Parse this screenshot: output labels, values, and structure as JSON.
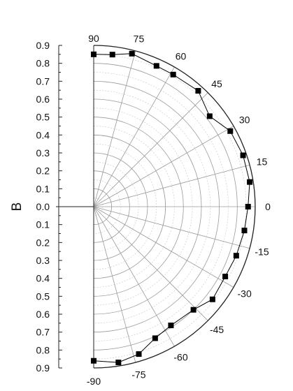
{
  "chart_data": {
    "type": "polar-scatter-line",
    "title": "",
    "ylabel": "B",
    "radial_axis": {
      "range": [
        0,
        0.9
      ],
      "tick_labels": [
        "0.9",
        "0.8",
        "0.7",
        "0.6",
        "0.5",
        "0.4",
        "0.3",
        "0.2",
        "0.1",
        "0.0"
      ],
      "minor_gridlines": true
    },
    "angular_axis": {
      "range": [
        -90,
        90
      ],
      "unit": "degrees",
      "tick_labels": [
        "90",
        "75",
        "60",
        "45",
        "30",
        "15",
        "0",
        "-15",
        "-30",
        "-45",
        "-60",
        "-75",
        "-90"
      ]
    },
    "grid": true,
    "series": [
      {
        "marker": "square",
        "line": true,
        "points": [
          {
            "angle": 90,
            "r": 0.85
          },
          {
            "angle": 83,
            "r": 0.855
          },
          {
            "angle": 76,
            "r": 0.88
          },
          {
            "angle": 66,
            "r": 0.86
          },
          {
            "angle": 59,
            "r": 0.86
          },
          {
            "angle": 48,
            "r": 0.87
          },
          {
            "angle": 38,
            "r": 0.82
          },
          {
            "angle": 29,
            "r": 0.87
          },
          {
            "angle": 19,
            "r": 0.88
          },
          {
            "angle": 9,
            "r": 0.88
          },
          {
            "angle": 0,
            "r": 0.86
          },
          {
            "angle": -9,
            "r": 0.85
          },
          {
            "angle": -19,
            "r": 0.84
          },
          {
            "angle": -28,
            "r": 0.83
          },
          {
            "angle": -38,
            "r": 0.84
          },
          {
            "angle": -46,
            "r": 0.8
          },
          {
            "angle": -57,
            "r": 0.79
          },
          {
            "angle": -65,
            "r": 0.81
          },
          {
            "angle": -73,
            "r": 0.86
          },
          {
            "angle": -81,
            "r": 0.88
          },
          {
            "angle": -90,
            "r": 0.86
          }
        ]
      }
    ]
  }
}
